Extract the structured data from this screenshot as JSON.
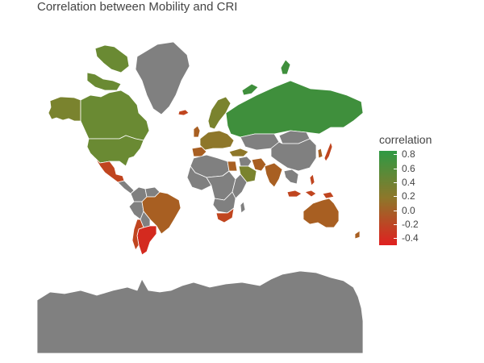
{
  "title": "Correlation between Mobility and CRI",
  "legend": {
    "title": "correlation",
    "range": [
      -0.5,
      0.85
    ],
    "ticks": [
      "0.8",
      "0.6",
      "0.4",
      "0.2",
      "0.0",
      "-0.2",
      "-0.4"
    ],
    "tick_values": [
      0.8,
      0.6,
      0.4,
      0.2,
      0.0,
      -0.2,
      -0.4
    ],
    "color_high": "#2e9a44",
    "color_low": "#e02020"
  },
  "colors": {
    "no_data": "#808080",
    "very_high": "#3f8f3c",
    "high": "#6a8a33",
    "mid_high": "#7a832e",
    "mid": "#8e772a",
    "mid_low": "#a85f22",
    "low": "#c0451f",
    "very_low": "#d42a1f"
  },
  "regions": [
    {
      "name": "Greenland",
      "category": "no data",
      "color_key": "no_data"
    },
    {
      "name": "Canada",
      "category": "high",
      "color_key": "high"
    },
    {
      "name": "Alaska",
      "category": "high",
      "color_key": "mid_high"
    },
    {
      "name": "United States",
      "category": "high",
      "color_key": "high"
    },
    {
      "name": "Mexico",
      "category": "low",
      "color_key": "low"
    },
    {
      "name": "Central America",
      "category": "no data",
      "color_key": "no_data"
    },
    {
      "name": "Colombia",
      "category": "no data",
      "color_key": "no_data"
    },
    {
      "name": "Venezuela",
      "category": "no data",
      "color_key": "no_data"
    },
    {
      "name": "Peru",
      "category": "no data",
      "color_key": "no_data"
    },
    {
      "name": "Brazil",
      "category": "low",
      "color_key": "mid_low"
    },
    {
      "name": "Bolivia",
      "category": "no data",
      "color_key": "no_data"
    },
    {
      "name": "Argentina",
      "category": "very low",
      "color_key": "very_low"
    },
    {
      "name": "Chile",
      "category": "low",
      "color_key": "low"
    },
    {
      "name": "Russia",
      "category": "very high",
      "color_key": "very_high"
    },
    {
      "name": "Scandinavia",
      "category": "high",
      "color_key": "mid_high"
    },
    {
      "name": "Western Europe",
      "category": "mid",
      "color_key": "mid"
    },
    {
      "name": "Spain",
      "category": "mid low",
      "color_key": "mid_low"
    },
    {
      "name": "UK",
      "category": "mid low",
      "color_key": "mid_low"
    },
    {
      "name": "Iceland",
      "category": "low",
      "color_key": "low"
    },
    {
      "name": "Turkey",
      "category": "mid",
      "color_key": "mid"
    },
    {
      "name": "Kazakhstan",
      "category": "no data",
      "color_key": "no_data"
    },
    {
      "name": "Mongolia",
      "category": "no data",
      "color_key": "no_data"
    },
    {
      "name": "China",
      "category": "no data",
      "color_key": "no_data"
    },
    {
      "name": "Middle East",
      "category": "no data",
      "color_key": "no_data"
    },
    {
      "name": "Saudi Arabia",
      "category": "mid",
      "color_key": "mid_high"
    },
    {
      "name": "Iran",
      "category": "mid low",
      "color_key": "mid_low"
    },
    {
      "name": "India",
      "category": "low",
      "color_key": "mid_low"
    },
    {
      "name": "Southeast Asia",
      "category": "no data",
      "color_key": "no_data"
    },
    {
      "name": "Japan",
      "category": "low",
      "color_key": "low"
    },
    {
      "name": "Korea",
      "category": "mid low",
      "color_key": "mid_low"
    },
    {
      "name": "Indonesia",
      "category": "low",
      "color_key": "low"
    },
    {
      "name": "Philippines",
      "category": "low",
      "color_key": "low"
    },
    {
      "name": "North Africa",
      "category": "no data",
      "color_key": "no_data"
    },
    {
      "name": "Egypt",
      "category": "mid low",
      "color_key": "mid_low"
    },
    {
      "name": "West Africa",
      "category": "no data",
      "color_key": "no_data"
    },
    {
      "name": "Central Africa",
      "category": "no data",
      "color_key": "no_data"
    },
    {
      "name": "East Africa",
      "category": "no data",
      "color_key": "no_data"
    },
    {
      "name": "Southern Africa",
      "category": "no data",
      "color_key": "no_data"
    },
    {
      "name": "South Africa",
      "category": "low",
      "color_key": "low"
    },
    {
      "name": "Madagascar",
      "category": "no data",
      "color_key": "no_data"
    },
    {
      "name": "Australia",
      "category": "low",
      "color_key": "mid_low"
    },
    {
      "name": "New Zealand",
      "category": "low",
      "color_key": "mid_low"
    },
    {
      "name": "Antarctica",
      "category": "no data",
      "color_key": "no_data"
    }
  ]
}
